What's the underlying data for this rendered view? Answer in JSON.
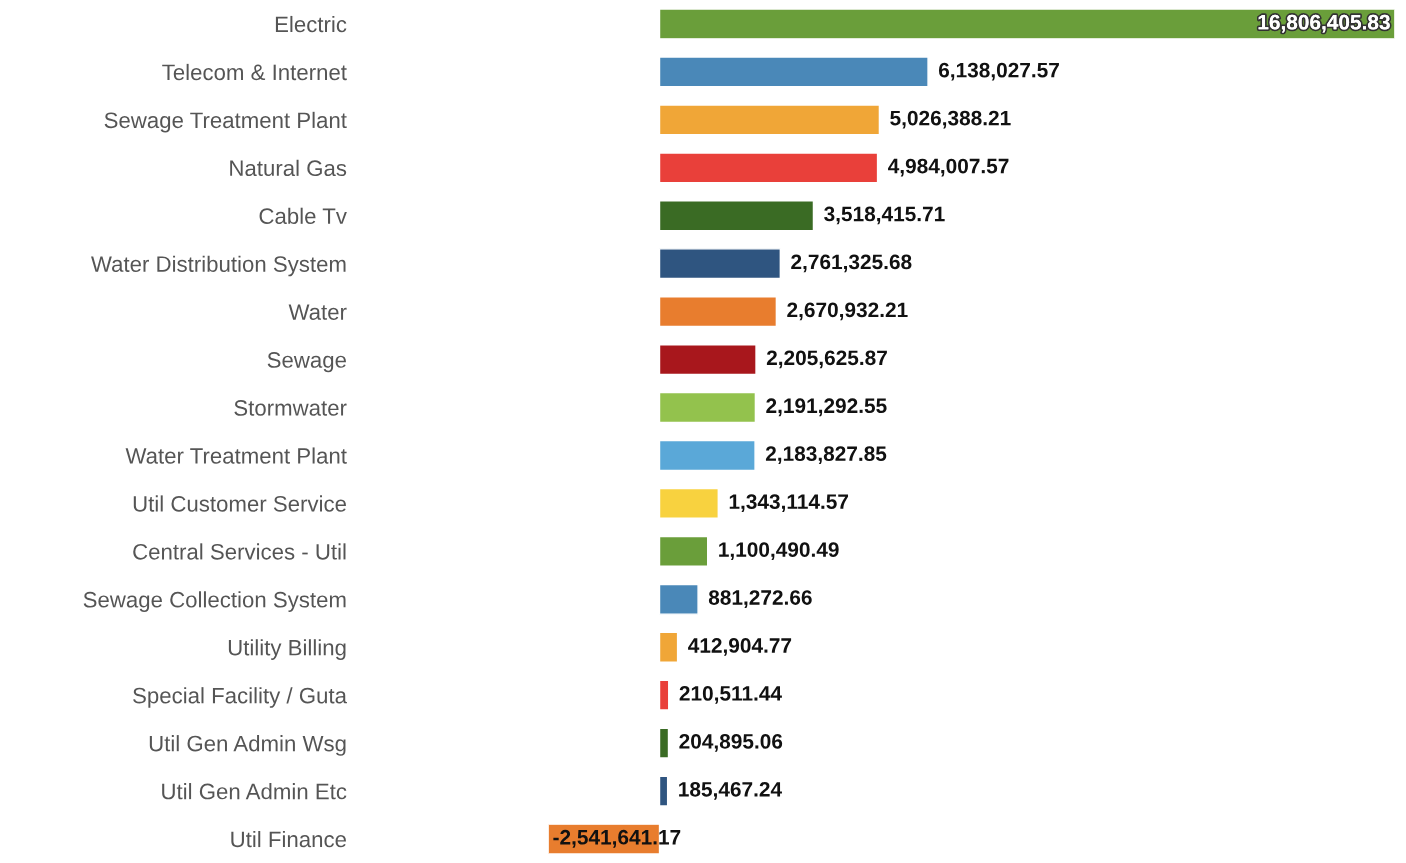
{
  "chart_data": {
    "type": "bar",
    "orientation": "horizontal",
    "value_labels": [
      "16,806,405.83",
      "6,138,027.57",
      "5,026,388.21",
      "4,984,007.57",
      "3,518,415.71",
      "2,761,325.68",
      "2,670,932.21",
      "2,205,625.87",
      "2,191,292.55",
      "2,183,827.85",
      "1,343,114.57",
      "1,100,490.49",
      "881,272.66",
      "412,904.77",
      "210,511.44",
      "204,895.06",
      "185,467.24",
      "-2,541,641.17"
    ],
    "categories": [
      "Electric",
      "Telecom & Internet",
      "Sewage Treatment Plant",
      "Natural Gas",
      "Cable Tv",
      "Water Distribution System",
      "Water",
      "Sewage",
      "Stormwater",
      "Water Treatment Plant",
      "Util Customer Service",
      "Central Services - Util",
      "Sewage Collection System",
      "Utility Billing",
      "Special Facility / Guta",
      "Util Gen Admin Wsg",
      "Util Gen Admin Etc",
      "Util Finance"
    ],
    "values": [
      16806405.83,
      6138027.57,
      5026388.21,
      4984007.57,
      3518415.71,
      2761325.68,
      2670932.21,
      2205625.87,
      2191292.55,
      2183827.85,
      1343114.57,
      1100490.49,
      881272.66,
      412904.77,
      210511.44,
      204895.06,
      185467.24,
      -2541641.17
    ],
    "colors": [
      "#6a9e3a",
      "#4a88b8",
      "#f0a637",
      "#e9403a",
      "#3a6b24",
      "#2f5580",
      "#e87d2e",
      "#a8171c",
      "#93c24d",
      "#5aa8d8",
      "#f8d23f",
      "#6a9e3a",
      "#4a88b8",
      "#f0a637",
      "#e9403a",
      "#3a6b24",
      "#2f5580",
      "#e87d2e"
    ]
  }
}
